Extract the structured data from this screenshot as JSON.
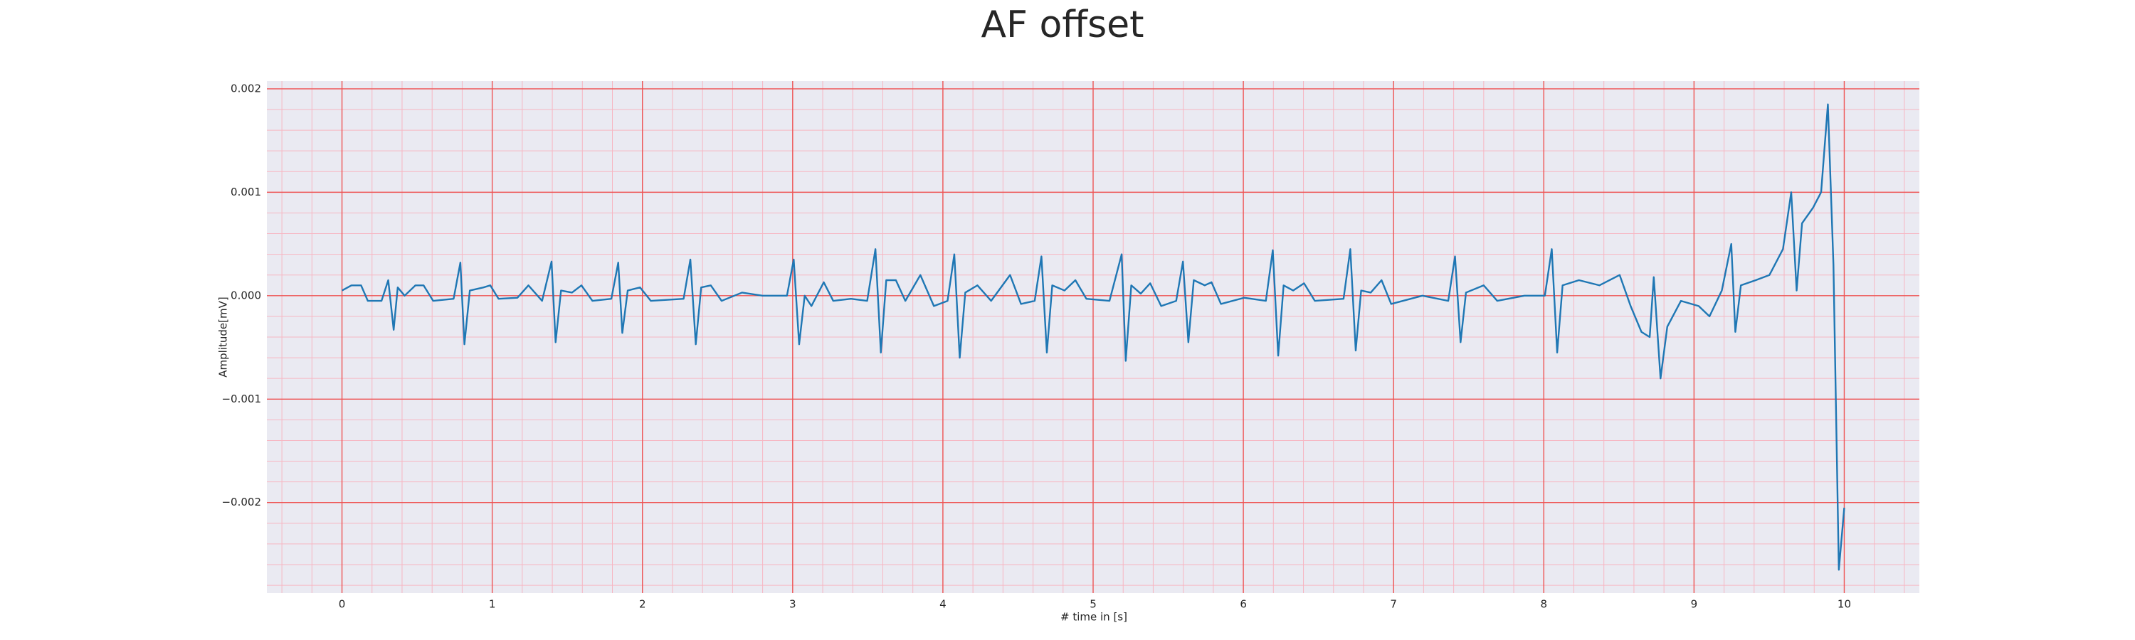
{
  "chart_data": {
    "type": "line",
    "title": "AF offset",
    "xlabel": "# time in [s]",
    "ylabel": "Amplitude[mV]",
    "color": "#1f77b4",
    "grid": true,
    "minor_grid": true,
    "xlim": [
      -0.5,
      10.5
    ],
    "ylim": [
      -0.002875,
      0.002075
    ],
    "xticks": [
      0,
      1,
      2,
      3,
      4,
      5,
      6,
      7,
      8,
      9,
      10
    ],
    "yticks": [
      {
        "value": -0.002,
        "label": "−0.002"
      },
      {
        "value": -0.001,
        "label": "−0.001"
      },
      {
        "value": 0,
        "label": "0.000"
      },
      0.001,
      0.002
    ],
    "x": [
      0,
      0.063,
      0.127,
      0.172,
      0.263,
      0.308,
      0.344,
      0.371,
      0.417,
      0.489,
      0.543,
      0.607,
      0.743,
      0.788,
      0.815,
      0.851,
      0.942,
      0.987,
      1.042,
      1.168,
      1.241,
      1.332,
      1.395,
      1.422,
      1.458,
      1.531,
      1.594,
      1.667,
      1.793,
      1.839,
      1.866,
      1.902,
      1.984,
      2.056,
      2.274,
      2.319,
      2.355,
      2.391,
      2.455,
      2.527,
      2.663,
      2.799,
      2.962,
      3.007,
      3.043,
      3.08,
      3.125,
      3.207,
      3.27,
      3.388,
      3.496,
      3.551,
      3.587,
      3.623,
      3.687,
      3.75,
      3.85,
      3.94,
      4.031,
      4.076,
      4.112,
      4.149,
      4.23,
      4.321,
      4.447,
      4.52,
      4.611,
      4.656,
      4.692,
      4.728,
      4.81,
      4.882,
      4.955,
      5.109,
      5.19,
      5.217,
      5.254,
      5.317,
      5.38,
      5.453,
      5.553,
      5.598,
      5.634,
      5.67,
      5.743,
      5.788,
      5.851,
      6.005,
      6.15,
      6.196,
      6.232,
      6.268,
      6.332,
      6.404,
      6.476,
      6.667,
      6.712,
      6.748,
      6.784,
      6.848,
      6.92,
      6.984,
      7.192,
      7.364,
      7.409,
      7.446,
      7.482,
      7.6,
      7.69,
      7.871,
      8.007,
      8.053,
      8.089,
      8.125,
      8.234,
      8.37,
      8.505,
      8.578,
      8.65,
      8.705,
      8.732,
      8.777,
      8.822,
      8.913,
      9.031,
      9.103,
      9.185,
      9.248,
      9.275,
      9.312,
      9.411,
      9.502,
      9.592,
      9.647,
      9.683,
      9.719,
      9.792,
      9.846,
      9.891,
      9.928,
      9.964,
      10.0
    ],
    "values": [
      5e-05,
      0.0001,
      0.0001,
      -5e-05,
      -5e-05,
      0.00015,
      -0.00033,
      8e-05,
      0,
      0.0001,
      0.0001,
      -5e-05,
      -3e-05,
      0.00032,
      -0.00047,
      5e-05,
      8e-05,
      0.0001,
      -3e-05,
      -2e-05,
      0.0001,
      -5e-05,
      0.00033,
      -0.00045,
      5e-05,
      3e-05,
      0.0001,
      -5e-05,
      -3e-05,
      0.00032,
      -0.00036,
      5e-05,
      8e-05,
      -5e-05,
      -3e-05,
      0.00035,
      -0.00047,
      8e-05,
      0.0001,
      -5e-05,
      3e-05,
      0,
      0,
      0.00035,
      -0.00047,
      0,
      -0.0001,
      0.00013,
      -5e-05,
      -3e-05,
      -5e-05,
      0.00045,
      -0.00055,
      0.00015,
      0.00015,
      -5e-05,
      0.0002,
      -0.0001,
      -5e-05,
      0.0004,
      -0.0006,
      3e-05,
      0.0001,
      -5e-05,
      0.0002,
      -8e-05,
      -5e-05,
      0.00038,
      -0.00055,
      0.0001,
      5e-05,
      0.00015,
      -3e-05,
      -5e-05,
      0.0004,
      -0.00063,
      0.0001,
      2e-05,
      0.00012,
      -0.0001,
      -5e-05,
      0.00033,
      -0.00045,
      0.00015,
      0.0001,
      0.00013,
      -8e-05,
      -2e-05,
      -5e-05,
      0.00044,
      -0.00058,
      0.0001,
      5e-05,
      0.00012,
      -5e-05,
      -3e-05,
      0.00045,
      -0.00053,
      5e-05,
      3e-05,
      0.00015,
      -8e-05,
      0,
      -5e-05,
      0.00038,
      -0.00045,
      3e-05,
      0.0001,
      -5e-05,
      0,
      0,
      0.00045,
      -0.00055,
      0.0001,
      0.00015,
      0.0001,
      0.0002,
      -0.0001,
      -0.00035,
      -0.0004,
      0.00018,
      -0.0008,
      -0.0003,
      -5e-05,
      -0.0001,
      -0.0002,
      5e-05,
      0.0005,
      -0.00035,
      0.0001,
      0.00015,
      0.0002,
      0.00045,
      0.001,
      5e-05,
      0.0007,
      0.00085,
      0.001,
      0.00185,
      0.0003,
      -0.00265,
      -0.00205
    ]
  }
}
